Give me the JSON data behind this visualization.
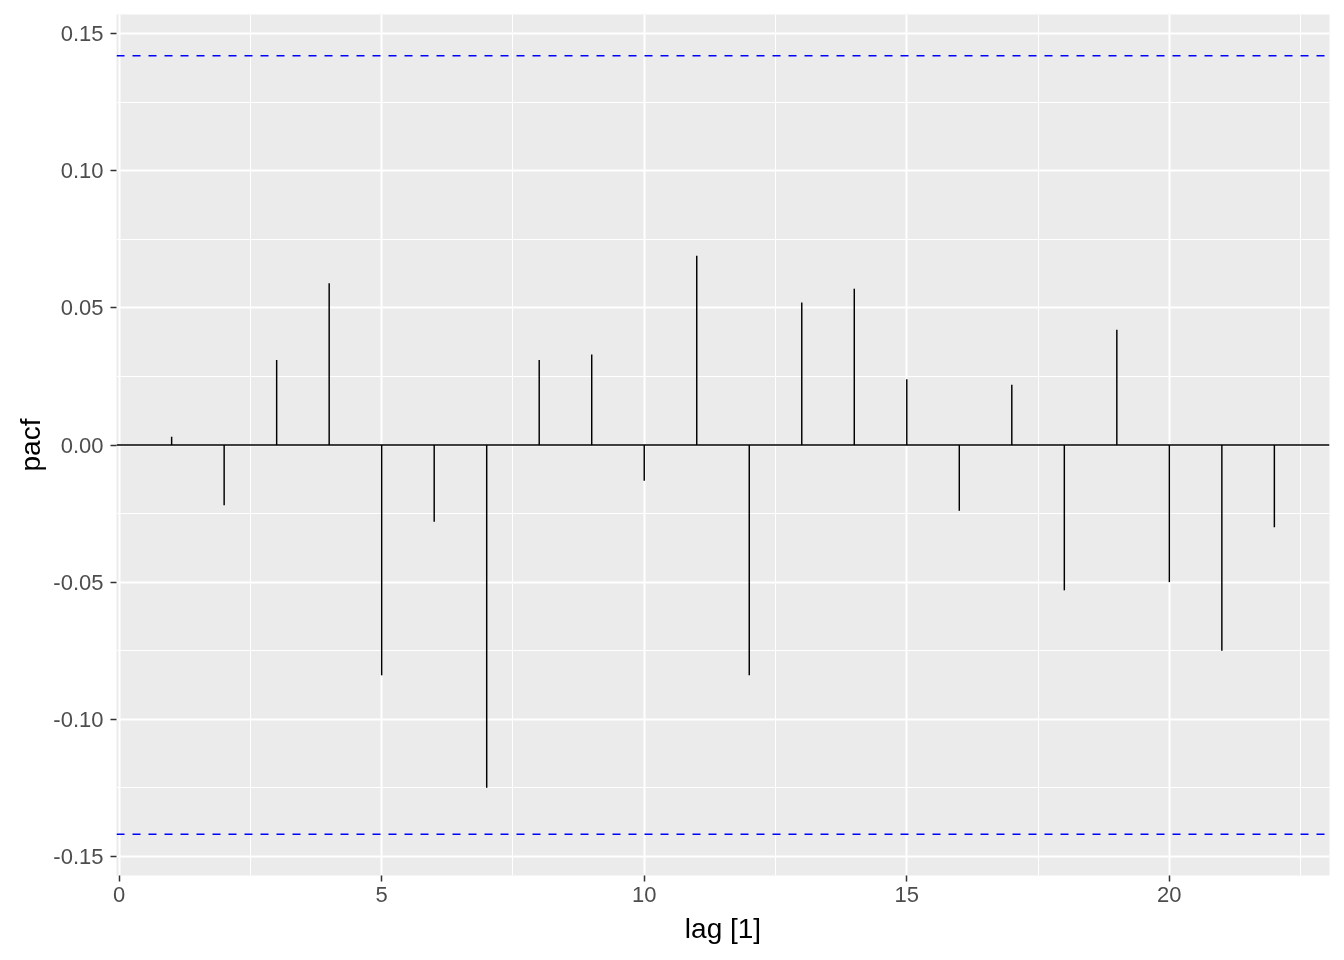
{
  "chart_data": {
    "type": "bar",
    "xlabel": "lag [1]",
    "ylabel": "pacf",
    "color": "#000000",
    "x": [
      1,
      2,
      3,
      4,
      5,
      6,
      7,
      8,
      9,
      10,
      11,
      12,
      13,
      14,
      15,
      16,
      17,
      18,
      19,
      20,
      21,
      22
    ],
    "values": [
      0.003,
      -0.022,
      0.031,
      0.059,
      -0.084,
      -0.028,
      -0.125,
      0.031,
      0.033,
      -0.013,
      0.069,
      -0.084,
      0.052,
      0.057,
      0.024,
      -0.024,
      0.022,
      -0.053,
      0.042,
      -0.05,
      -0.075,
      -0.03
    ],
    "xlim": [
      -0.05,
      23.05
    ],
    "ylim": [
      -0.157,
      0.157
    ],
    "xticks": [
      0,
      5,
      10,
      15,
      20
    ],
    "yticks": [
      {
        "value": -0.15,
        "label": "-0.15"
      },
      {
        "value": -0.1,
        "label": "-0.10"
      },
      {
        "value": -0.05,
        "label": "-0.05"
      },
      {
        "value": 0,
        "label": "0.00"
      },
      {
        "value": 0.05,
        "label": "0.05"
      },
      {
        "value": 0.1,
        "label": "0.10"
      },
      {
        "value": 0.15,
        "label": "0.15"
      }
    ],
    "grid": true,
    "ref_lines": [
      {
        "axis": "y",
        "value": 0,
        "color": "#000000",
        "line_style": "solid"
      },
      {
        "axis": "y",
        "value": 0.142,
        "color": "#0000ff",
        "line_style": "dashed"
      },
      {
        "axis": "y",
        "value": -0.142,
        "color": "#0000ff",
        "line_style": "dashed"
      }
    ]
  }
}
